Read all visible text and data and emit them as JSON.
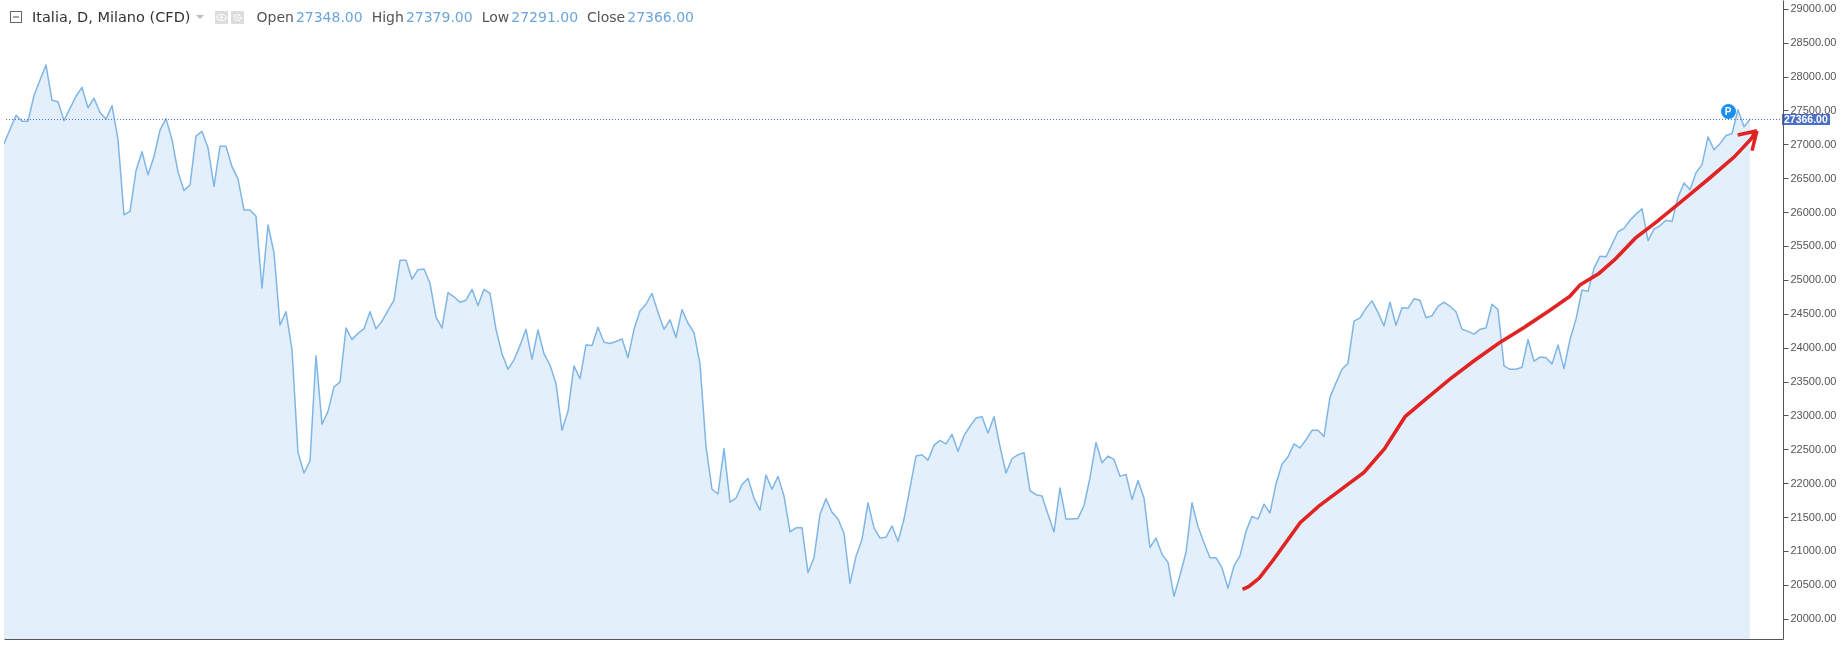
{
  "chart_data": {
    "type": "area",
    "title": "Italia, D, Milano (CFD)",
    "annotations": [
      "Open",
      "27348.00",
      "High",
      "27379.00",
      "Low",
      "27291.00",
      "Close",
      "27366.00",
      {
        "text": "P",
        "y": 27480
      }
    ],
    "categories": [
      null,
      null,
      null,
      null,
      null,
      null,
      null,
      null,
      null,
      null,
      null,
      null,
      null,
      null,
      null,
      null,
      null,
      null,
      null,
      null,
      null,
      null,
      null,
      null,
      null,
      null,
      null,
      null,
      null,
      null,
      null,
      null,
      null,
      null,
      null,
      null,
      null,
      null,
      null,
      null,
      null,
      null,
      null,
      null,
      null,
      null,
      null,
      null,
      null,
      null,
      null,
      null,
      null,
      null,
      null,
      null,
      null,
      null,
      null,
      null,
      null,
      null,
      null,
      null,
      null,
      null,
      null,
      null,
      null,
      null,
      null,
      null,
      null,
      null,
      null,
      null,
      null,
      null,
      null,
      null,
      null,
      null,
      null,
      null,
      null,
      null,
      null,
      null,
      null,
      null,
      null,
      null,
      null,
      null,
      null,
      null,
      null,
      null,
      null,
      null,
      null,
      null,
      null,
      null,
      null,
      null,
      null,
      null,
      null,
      null,
      null,
      null,
      null,
      null,
      null,
      null,
      null,
      null,
      null,
      null,
      null,
      null,
      null,
      null,
      null,
      null,
      null,
      null,
      null,
      null,
      null,
      null,
      null,
      null,
      null,
      null,
      null,
      null,
      null,
      null,
      null,
      null,
      null,
      null,
      null,
      null,
      null,
      null,
      null,
      null,
      null,
      null,
      null,
      null,
      null,
      null,
      null,
      null,
      null,
      null,
      null,
      null,
      null,
      null,
      null,
      null,
      null,
      null,
      null,
      null,
      null,
      null,
      null,
      null,
      null,
      null,
      null,
      null,
      null,
      null,
      null,
      null,
      null,
      null,
      null,
      null,
      null,
      null,
      null,
      null,
      null,
      null,
      null,
      null,
      null,
      null,
      null,
      null,
      null,
      null,
      null,
      null,
      null,
      null,
      null,
      null,
      null,
      null,
      null,
      null,
      null,
      null,
      null,
      null,
      null,
      null,
      null,
      null,
      null,
      null,
      null,
      null,
      null,
      null,
      null,
      null,
      null,
      null,
      null,
      null,
      null,
      null,
      null,
      null,
      null,
      null,
      null,
      null,
      null,
      null,
      null,
      null,
      null,
      null,
      null,
      null,
      null,
      null,
      null,
      null,
      null,
      null,
      null,
      null,
      null,
      null,
      null,
      null,
      null,
      null,
      null,
      null,
      null,
      null,
      null,
      null,
      null,
      null,
      null,
      null,
      null,
      null,
      null,
      null,
      null,
      null,
      null,
      null,
      null,
      null,
      null,
      null,
      null,
      null,
      null,
      null,
      null,
      null,
      null,
      null,
      null,
      null
    ],
    "series": [
      {
        "color": "#80b6e6",
        "values": [
          27010,
          27220,
          27430,
          27340,
          27340,
          27720,
          27950,
          28170,
          27650,
          27630,
          27350,
          27530,
          27710,
          27840,
          27540,
          27680,
          27470,
          27370,
          27570,
          27070,
          25960,
          26010,
          26610,
          26890,
          26550,
          26820,
          27210,
          27380,
          27070,
          26590,
          26320,
          26400,
          27120,
          27190,
          26950,
          26380,
          26970,
          26970,
          26670,
          26490,
          26030,
          26030,
          25940,
          24880,
          25810,
          25400,
          24330,
          24530,
          23970,
          22450,
          22150,
          22330,
          23880,
          22870,
          23060,
          23420,
          23490,
          24290,
          24120,
          24210,
          24280,
          24530,
          24280,
          24390,
          24550,
          24700,
          25290,
          25290,
          25010,
          25150,
          25160,
          24950,
          24450,
          24290,
          24810,
          24750,
          24670,
          24700,
          24860,
          24620,
          24860,
          24800,
          24270,
          23910,
          23680,
          23820,
          24030,
          24270,
          23830,
          24260,
          23910,
          23740,
          23470,
          22780,
          23060,
          23730,
          23540,
          24040,
          24030,
          24300,
          24080,
          24060,
          24090,
          24130,
          23850,
          24270,
          24540,
          24640,
          24800,
          24520,
          24270,
          24410,
          24150,
          24560,
          24360,
          24220,
          23760,
          22540,
          21910,
          21840,
          22510,
          21720,
          21780,
          21980,
          22070,
          21780,
          21600,
          22120,
          21910,
          22100,
          21810,
          21280,
          21340,
          21340,
          20680,
          20900,
          21540,
          21770,
          21570,
          21470,
          21260,
          20520,
          20920,
          21170,
          21710,
          21340,
          21190,
          21200,
          21370,
          21140,
          21470,
          21930,
          22400,
          22420,
          22340,
          22560,
          22630,
          22580,
          22720,
          22470,
          22700,
          22840,
          22960,
          22980,
          22740,
          22980,
          22540,
          22150,
          22360,
          22420,
          22450,
          21890,
          21830,
          21810,
          21540,
          21280,
          21930,
          21470,
          21470,
          21480,
          21670,
          22080,
          22600,
          22300,
          22400,
          22350,
          22100,
          22130,
          21760,
          22040,
          21780,
          21050,
          21190,
          20950,
          20830,
          20330,
          20640,
          20980,
          21710,
          21360,
          21120,
          20900,
          20900,
          20750,
          20450,
          20780,
          20930,
          21290,
          21510,
          21470,
          21690,
          21560,
          21990,
          22280,
          22390,
          22580,
          22520,
          22640,
          22780,
          22780,
          22690,
          23270,
          23480,
          23680,
          23770,
          24390,
          24440,
          24580,
          24690,
          24520,
          24320,
          24670,
          24330,
          24590,
          24580,
          24720,
          24700,
          24440,
          24470,
          24610,
          24670,
          24610,
          24530,
          24270,
          24240,
          24200,
          24270,
          24290,
          24640,
          24560,
          23730,
          23680,
          23680,
          23710,
          24120,
          23800,
          23860,
          23850,
          23760,
          24040,
          23690,
          24120,
          24420,
          24850,
          24830,
          25170,
          25350,
          25340,
          25520,
          25710,
          25760,
          25880,
          25970,
          26050,
          25580,
          25750,
          25800,
          25880,
          25860,
          26220,
          26430,
          26330,
          26580,
          26700,
          27110,
          26920,
          27010,
          27130,
          27160,
          27510,
          27260,
          27370
        ]
      }
    ],
    "ylim": [
      19700,
      29130
    ],
    "yticks": [
      {
        "value": 20000,
        "label": "20000.00"
      },
      {
        "value": 20500,
        "label": "20500.00"
      },
      {
        "value": 21000,
        "label": "21000.00"
      },
      {
        "value": 21500,
        "label": "21500.00"
      },
      {
        "value": 22000,
        "label": "22000.00"
      },
      {
        "value": 22500,
        "label": "22500.00"
      },
      {
        "value": 23000,
        "label": "23000.00"
      },
      {
        "value": 23500,
        "label": "23500.00"
      },
      {
        "value": 24000,
        "label": "24000.00"
      },
      {
        "value": 24500,
        "label": "24500.00"
      },
      {
        "value": 25000,
        "label": "25000.00"
      },
      {
        "value": 25500,
        "label": "25500.00"
      },
      {
        "value": 26000,
        "label": "26000.00"
      },
      {
        "value": 26500,
        "label": "26500.00"
      },
      {
        "value": 27000,
        "label": "27000.00"
      },
      {
        "value": 27500,
        "label": "27500.00"
      },
      {
        "value": 28000,
        "label": "28000.00"
      },
      {
        "value": 28500,
        "label": "28500.00"
      },
      {
        "value": 29000,
        "label": "29000.00"
      }
    ],
    "ref_lines": [
      {
        "axis": "y",
        "value": 27366,
        "label": "27366.00",
        "color": "#4a6fc8",
        "line_style": "dotted"
      }
    ],
    "tick_labels": "y"
  }
}
